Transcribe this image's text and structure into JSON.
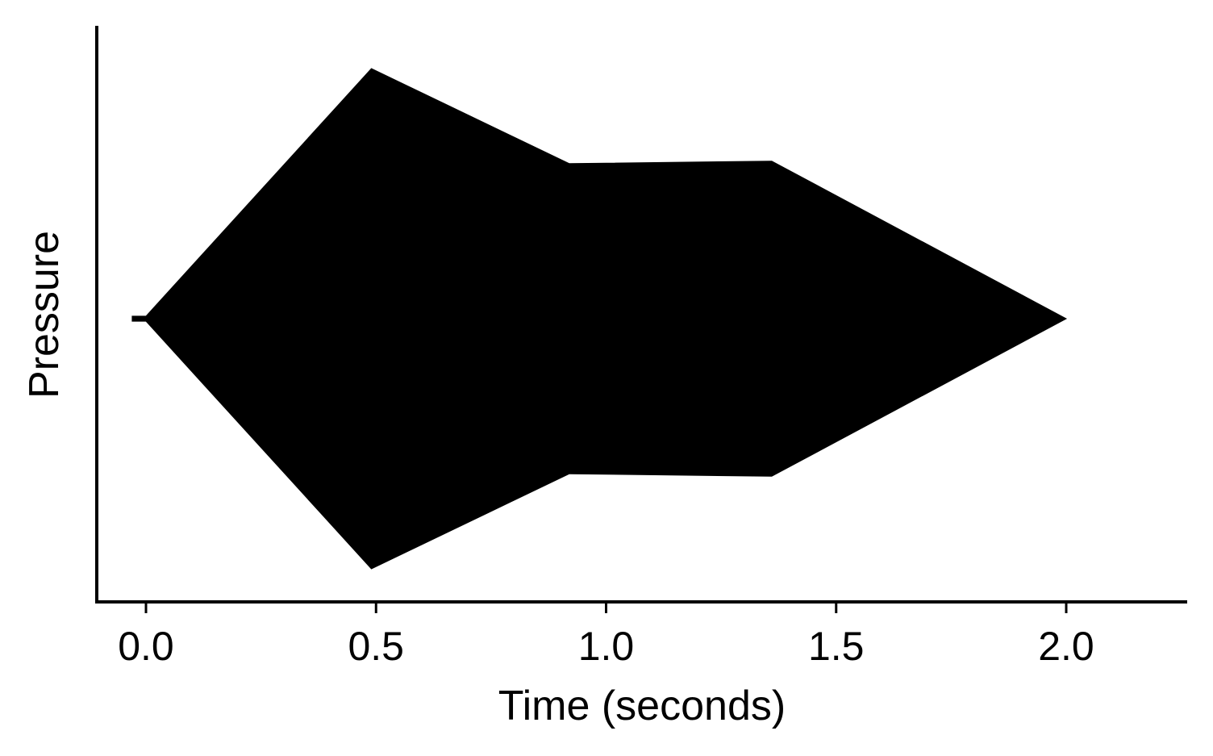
{
  "chart_data": {
    "type": "area",
    "xlabel": "Time (seconds)",
    "ylabel": "Pressure",
    "xlim": [
      -0.11,
      2.27
    ],
    "ylim": [
      -1.1,
      1.1
    ],
    "xticks": [
      0.0,
      0.5,
      1.0,
      1.5,
      2.0
    ],
    "xtick_labels": [
      "0.0",
      "0.5",
      "1.0",
      "1.5",
      "2.0"
    ],
    "y_ticks_shown": false,
    "grid": false,
    "legend": "none",
    "fill_color": "#000000",
    "series": [
      {
        "x": [
          -0.03,
          0.0,
          0.49,
          0.92,
          1.36,
          2.0
        ],
        "values": [
          0.01,
          0.01,
          1.0,
          0.62,
          0.63,
          0.0
        ]
      }
    ]
  }
}
